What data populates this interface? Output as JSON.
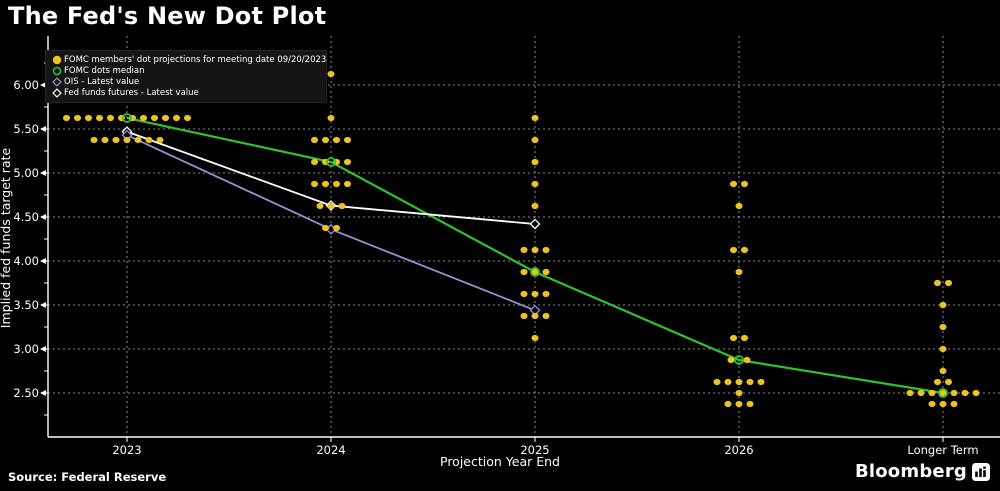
{
  "title": "The Fed's New Dot Plot",
  "source_line": "Source: Federal Reserve",
  "brand": "Bloomberg",
  "colors": {
    "background": "#000000",
    "dots": "#EDC320",
    "median": "#2FC32F",
    "ois": "#9B8FD8",
    "futures": "#FFFFFF",
    "grid": "rgba(255,255,255,0.55)",
    "text": "#FFFFFF"
  },
  "legend": {
    "items": [
      {
        "label": "FOMC members' dot projections for meeting date 09/20/2023",
        "marker": "dot-filled",
        "color": "#EDC320"
      },
      {
        "label": "FOMC dots median",
        "marker": "circle-open",
        "color": "#2FC32F"
      },
      {
        "label": "OIS - Latest value",
        "marker": "diamond-open",
        "color": "#9B8FD8"
      },
      {
        "label": "Fed funds futures - Latest value",
        "marker": "diamond-open",
        "color": "#FFFFFF"
      }
    ]
  },
  "chart_data": {
    "type": "scatter",
    "title": "The Fed's New Dot Plot",
    "xlabel": "Projection Year End",
    "ylabel": "Implied fed funds target rate",
    "categories": [
      "2023",
      "2024",
      "2025",
      "2026",
      "Longer Term"
    ],
    "y_ticks": [
      6.0,
      5.5,
      5.0,
      4.5,
      4.0,
      3.5,
      3.0,
      2.5
    ],
    "y_minor_step": 0.25,
    "ylim": [
      2.0,
      6.55
    ],
    "grid": true,
    "legend_position": "top-left",
    "dot_rows": [
      {
        "year": "2023",
        "value": 5.625,
        "count": 12
      },
      {
        "year": "2023",
        "value": 5.375,
        "count": 7
      },
      {
        "year": "2024",
        "value": 6.125,
        "count": 1
      },
      {
        "year": "2024",
        "value": 5.625,
        "count": 1
      },
      {
        "year": "2024",
        "value": 5.375,
        "count": 4
      },
      {
        "year": "2024",
        "value": 5.125,
        "count": 4
      },
      {
        "year": "2024",
        "value": 4.875,
        "count": 4
      },
      {
        "year": "2024",
        "value": 4.625,
        "count": 3
      },
      {
        "year": "2024",
        "value": 4.375,
        "count": 2
      },
      {
        "year": "2025",
        "value": 5.625,
        "count": 1
      },
      {
        "year": "2025",
        "value": 5.375,
        "count": 1
      },
      {
        "year": "2025",
        "value": 5.125,
        "count": 1
      },
      {
        "year": "2025",
        "value": 4.875,
        "count": 1
      },
      {
        "year": "2025",
        "value": 4.625,
        "count": 1
      },
      {
        "year": "2025",
        "value": 4.125,
        "count": 3
      },
      {
        "year": "2025",
        "value": 3.875,
        "count": 3
      },
      {
        "year": "2025",
        "value": 3.625,
        "count": 3
      },
      {
        "year": "2025",
        "value": 3.375,
        "count": 3
      },
      {
        "year": "2025",
        "value": 3.125,
        "count": 1
      },
      {
        "year": "2026",
        "value": 4.875,
        "count": 2
      },
      {
        "year": "2026",
        "value": 4.625,
        "count": 1
      },
      {
        "year": "2026",
        "value": 4.125,
        "count": 2
      },
      {
        "year": "2026",
        "value": 3.875,
        "count": 1
      },
      {
        "year": "2026",
        "value": 3.125,
        "count": 2
      },
      {
        "year": "2026",
        "value": 2.875,
        "count": 2,
        "spacing": 16
      },
      {
        "year": "2026",
        "value": 2.625,
        "count": 5
      },
      {
        "year": "2026",
        "value": 2.5,
        "count": 1
      },
      {
        "year": "2026",
        "value": 2.375,
        "count": 3
      },
      {
        "year": "Longer Term",
        "value": 3.75,
        "count": 2
      },
      {
        "year": "Longer Term",
        "value": 3.5,
        "count": 1
      },
      {
        "year": "Longer Term",
        "value": 3.25,
        "count": 1
      },
      {
        "year": "Longer Term",
        "value": 3.0,
        "count": 1
      },
      {
        "year": "Longer Term",
        "value": 2.75,
        "count": 1
      },
      {
        "year": "Longer Term",
        "value": 2.625,
        "count": 2
      },
      {
        "year": "Longer Term",
        "value": 2.5,
        "count": 7
      },
      {
        "year": "Longer Term",
        "value": 2.375,
        "count": 3
      }
    ],
    "series": [
      {
        "name": "FOMC dots median",
        "color": "#2FC32F",
        "marker": "circle-open",
        "width": 2.2,
        "points": [
          [
            "2023",
            5.625
          ],
          [
            "2024",
            5.125
          ],
          [
            "2025",
            3.875
          ],
          [
            "2026",
            2.875
          ],
          [
            "Longer Term",
            2.5
          ]
        ]
      },
      {
        "name": "Fed funds futures - Latest value",
        "color": "#FFFFFF",
        "marker": "diamond-open",
        "width": 1.8,
        "points": [
          [
            "2023",
            5.47
          ],
          [
            "2024",
            4.63
          ],
          [
            "2025",
            4.42
          ]
        ]
      },
      {
        "name": "OIS - Latest value",
        "color": "#9B8FD8",
        "marker": "diamond-open",
        "width": 1.8,
        "points": [
          [
            "2023",
            5.43
          ],
          [
            "2024",
            4.36
          ],
          [
            "2025",
            3.44
          ]
        ]
      }
    ]
  }
}
